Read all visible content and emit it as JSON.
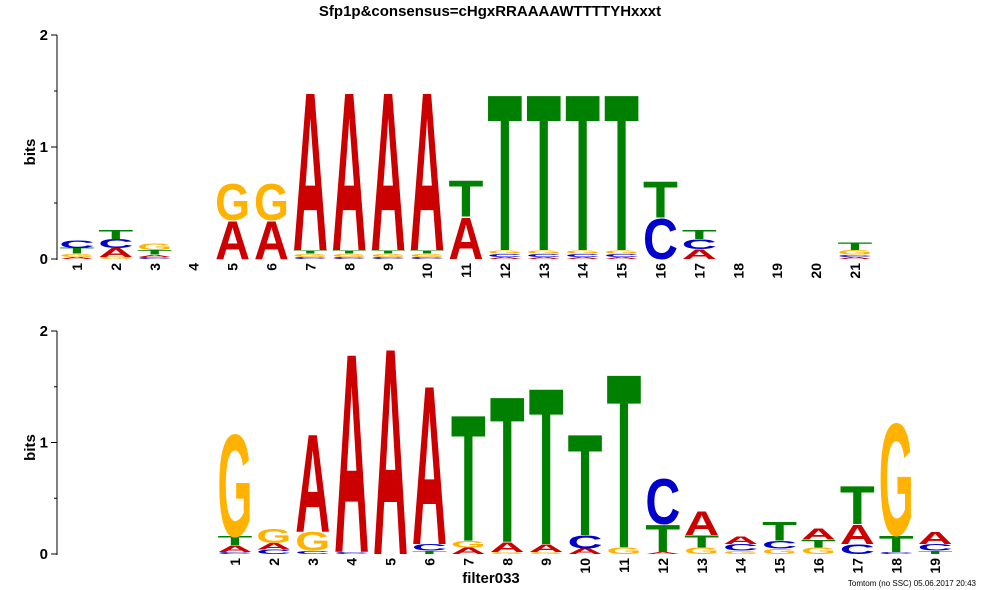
{
  "colors": {
    "A": "#cc0000",
    "C": "#0000cc",
    "G": "#ffb300",
    "T": "#008000"
  },
  "chart_data": [
    {
      "type": "sequence_logo",
      "title": "Sfp1p&consensus=cHgxRRAAAAWTTTTYHxxxt",
      "xlabel": "",
      "ylabel": "bits",
      "ylim": [
        0,
        2
      ],
      "yticks": [
        "0",
        "1",
        "2"
      ],
      "positions": [
        {
          "label": "1",
          "stack": [
            [
              "A",
              0.02
            ],
            [
              "G",
              0.03
            ],
            [
              "T",
              0.05
            ],
            [
              "C",
              0.07
            ]
          ]
        },
        {
          "label": "2",
          "stack": [
            [
              "G",
              0.02
            ],
            [
              "A",
              0.08
            ],
            [
              "C",
              0.08
            ],
            [
              "T",
              0.08
            ]
          ]
        },
        {
          "label": "3",
          "stack": [
            [
              "C",
              0.02
            ],
            [
              "A",
              0.02
            ],
            [
              "T",
              0.04
            ],
            [
              "G",
              0.06
            ]
          ]
        },
        {
          "label": "4",
          "stack": []
        },
        {
          "label": "5",
          "stack": [
            [
              "A",
              0.35
            ],
            [
              "G",
              0.33
            ]
          ]
        },
        {
          "label": "6",
          "stack": [
            [
              "A",
              0.35
            ],
            [
              "G",
              0.33
            ]
          ]
        },
        {
          "label": "7",
          "stack": [
            [
              "C",
              0.02
            ],
            [
              "G",
              0.03
            ],
            [
              "T",
              0.03
            ],
            [
              "A",
              1.45
            ]
          ]
        },
        {
          "label": "8",
          "stack": [
            [
              "C",
              0.02
            ],
            [
              "G",
              0.03
            ],
            [
              "T",
              0.03
            ],
            [
              "A",
              1.45
            ]
          ]
        },
        {
          "label": "9",
          "stack": [
            [
              "C",
              0.02
            ],
            [
              "G",
              0.03
            ],
            [
              "T",
              0.03
            ],
            [
              "A",
              1.45
            ]
          ]
        },
        {
          "label": "10",
          "stack": [
            [
              "C",
              0.02
            ],
            [
              "G",
              0.03
            ],
            [
              "T",
              0.03
            ],
            [
              "A",
              1.45
            ]
          ]
        },
        {
          "label": "11",
          "stack": [
            [
              "A",
              0.38
            ],
            [
              "T",
              0.33
            ]
          ]
        },
        {
          "label": "12",
          "stack": [
            [
              "A",
              0.02
            ],
            [
              "C",
              0.03
            ],
            [
              "G",
              0.03
            ],
            [
              "T",
              1.43
            ]
          ]
        },
        {
          "label": "13",
          "stack": [
            [
              "A",
              0.02
            ],
            [
              "C",
              0.03
            ],
            [
              "G",
              0.03
            ],
            [
              "T",
              1.43
            ]
          ]
        },
        {
          "label": "14",
          "stack": [
            [
              "A",
              0.02
            ],
            [
              "C",
              0.03
            ],
            [
              "G",
              0.03
            ],
            [
              "T",
              1.43
            ]
          ]
        },
        {
          "label": "15",
          "stack": [
            [
              "A",
              0.02
            ],
            [
              "C",
              0.03
            ],
            [
              "G",
              0.03
            ],
            [
              "T",
              1.43
            ]
          ]
        },
        {
          "label": "16",
          "stack": [
            [
              "C",
              0.37
            ],
            [
              "T",
              0.33
            ]
          ]
        },
        {
          "label": "17",
          "stack": [
            [
              "A",
              0.09
            ],
            [
              "C",
              0.09
            ],
            [
              "T",
              0.08
            ]
          ]
        },
        {
          "label": "18",
          "stack": []
        },
        {
          "label": "19",
          "stack": []
        },
        {
          "label": "20",
          "stack": []
        },
        {
          "label": "21",
          "stack": [
            [
              "A",
              0.02
            ],
            [
              "C",
              0.02
            ],
            [
              "G",
              0.04
            ],
            [
              "T",
              0.07
            ]
          ]
        }
      ]
    },
    {
      "type": "sequence_logo",
      "title": "",
      "xlabel": "filter033",
      "ylabel": "bits",
      "ylim": [
        0,
        2
      ],
      "yticks": [
        "0",
        "1",
        "2"
      ],
      "positions": [
        {
          "label": "1",
          "stack": [
            [
              "C",
              0.02
            ],
            [
              "A",
              0.06
            ],
            [
              "T",
              0.08
            ],
            [
              "G",
              0.94
            ]
          ]
        },
        {
          "label": "2",
          "stack": [
            [
              "C",
              0.04
            ],
            [
              "A",
              0.06
            ],
            [
              "G",
              0.13
            ]
          ]
        },
        {
          "label": "3",
          "stack": [
            [
              "C",
              0.03
            ],
            [
              "G",
              0.17
            ],
            [
              "A",
              0.9
            ]
          ]
        },
        {
          "label": "4",
          "stack": [
            [
              "C",
              0.02
            ],
            [
              "A",
              1.83
            ]
          ]
        },
        {
          "label": "5",
          "stack": [
            [
              "A",
              1.9
            ]
          ]
        },
        {
          "label": "6",
          "stack": [
            [
              "T",
              0.03
            ],
            [
              "C",
              0.06
            ],
            [
              "A",
              1.46
            ]
          ]
        },
        {
          "label": "7",
          "stack": [
            [
              "A",
              0.06
            ],
            [
              "G",
              0.06
            ],
            [
              "T",
              1.16
            ]
          ]
        },
        {
          "label": "8",
          "stack": [
            [
              "G",
              0.02
            ],
            [
              "A",
              0.09
            ],
            [
              "T",
              1.34
            ]
          ]
        },
        {
          "label": "9",
          "stack": [
            [
              "G",
              0.02
            ],
            [
              "A",
              0.07
            ],
            [
              "T",
              1.44
            ]
          ]
        },
        {
          "label": "10",
          "stack": [
            [
              "A",
              0.05
            ],
            [
              "C",
              0.12
            ],
            [
              "T",
              0.93
            ]
          ]
        },
        {
          "label": "11",
          "stack": [
            [
              "G",
              0.06
            ],
            [
              "T",
              1.6
            ]
          ]
        },
        {
          "label": "12",
          "stack": [
            [
              "A",
              0.02
            ],
            [
              "T",
              0.25
            ],
            [
              "C",
              0.42
            ]
          ]
        },
        {
          "label": "13",
          "stack": [
            [
              "G",
              0.06
            ],
            [
              "T",
              0.11
            ],
            [
              "A",
              0.22
            ]
          ]
        },
        {
          "label": "14",
          "stack": [
            [
              "G",
              0.03
            ],
            [
              "C",
              0.06
            ],
            [
              "A",
              0.07
            ]
          ]
        },
        {
          "label": "15",
          "stack": [
            [
              "G",
              0.05
            ],
            [
              "C",
              0.07
            ],
            [
              "T",
              0.17
            ]
          ]
        },
        {
          "label": "16",
          "stack": [
            [
              "G",
              0.06
            ],
            [
              "T",
              0.07
            ],
            [
              "A",
              0.1
            ]
          ]
        },
        {
          "label": "17",
          "stack": [
            [
              "C",
              0.09
            ],
            [
              "A",
              0.18
            ],
            [
              "T",
              0.35
            ]
          ]
        },
        {
          "label": "18",
          "stack": [
            [
              "C",
              0.02
            ],
            [
              "T",
              0.15
            ],
            [
              "G",
              1.03
            ]
          ]
        },
        {
          "label": "19",
          "stack": [
            [
              "T",
              0.03
            ],
            [
              "C",
              0.06
            ],
            [
              "A",
              0.11
            ]
          ]
        }
      ]
    }
  ],
  "footer": "Tomtom (no SSC) 05.06.2017 20:43"
}
